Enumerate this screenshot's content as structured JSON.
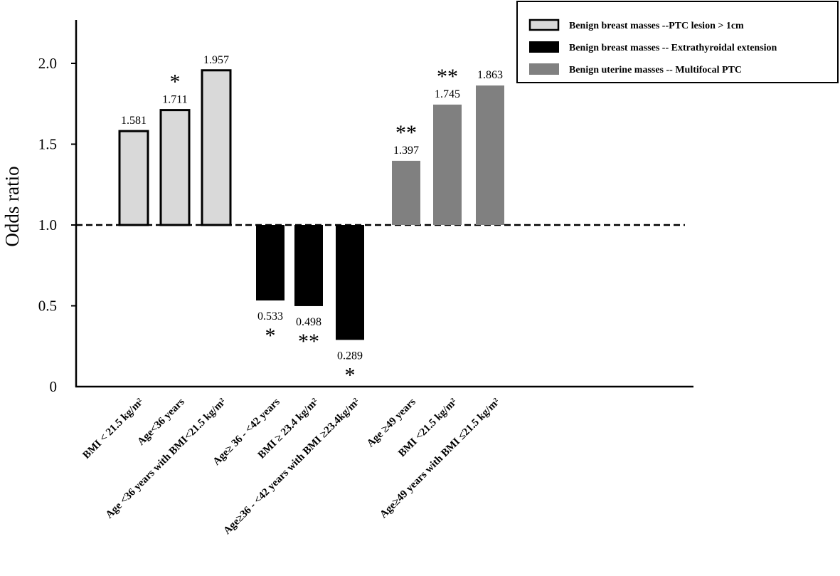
{
  "chart_data": {
    "type": "bar",
    "ylabel": "Odds ratio",
    "xlabel": "",
    "ylim": [
      0,
      2.25
    ],
    "baseline": 1.0,
    "yticks": [
      {
        "value": 0,
        "label": "0"
      },
      {
        "value": 0.5,
        "label": "0.5"
      },
      {
        "value": 1.0,
        "label": "1.0"
      },
      {
        "value": 1.5,
        "label": "1.5"
      },
      {
        "value": 2.0,
        "label": "2.0"
      }
    ],
    "series": [
      {
        "name": "Benign breast masses --PTC lesion > 1cm",
        "color": "#d9d9d9",
        "outlined": true,
        "bars": [
          {
            "category": "BMI < 21.5 kg/m²",
            "value": 1.581,
            "label": "1.581",
            "sig": ""
          },
          {
            "category": "Age<36 years",
            "value": 1.711,
            "label": "1.711",
            "sig": "*"
          },
          {
            "category": "Age <36 years with BMI<21.5 kg/m²",
            "value": 1.957,
            "label": "1.957",
            "sig": ""
          }
        ]
      },
      {
        "name": "Benign breast masses -- Extrathyroidal extension",
        "color": "#000000",
        "outlined": false,
        "bars": [
          {
            "category": "Age≥ 36 - <42 years",
            "value": 0.533,
            "label": "0.533",
            "sig": "*"
          },
          {
            "category": "BMI ≥ 23.4 kg/m²",
            "value": 0.498,
            "label": "0.498",
            "sig": "**"
          },
          {
            "category": "Age≥36 - <42 years with BMI ≥23.4kg/m²",
            "value": 0.289,
            "label": "0.289",
            "sig": "*"
          }
        ]
      },
      {
        "name": "Benign uterine masses -- Multifocal PTC",
        "color": "#808080",
        "outlined": false,
        "bars": [
          {
            "category": "Age ≥49 years",
            "value": 1.397,
            "label": "1.397",
            "sig": "**"
          },
          {
            "category": "BMI <21.5 kg/m²",
            "value": 1.745,
            "label": "1.745",
            "sig": "**"
          },
          {
            "category": "Age≥49 years with BMI ≤21.5 kg/m²",
            "value": 1.863,
            "label": "1.863",
            "sig": ""
          }
        ]
      }
    ],
    "legend": {
      "position": "top-right"
    }
  }
}
